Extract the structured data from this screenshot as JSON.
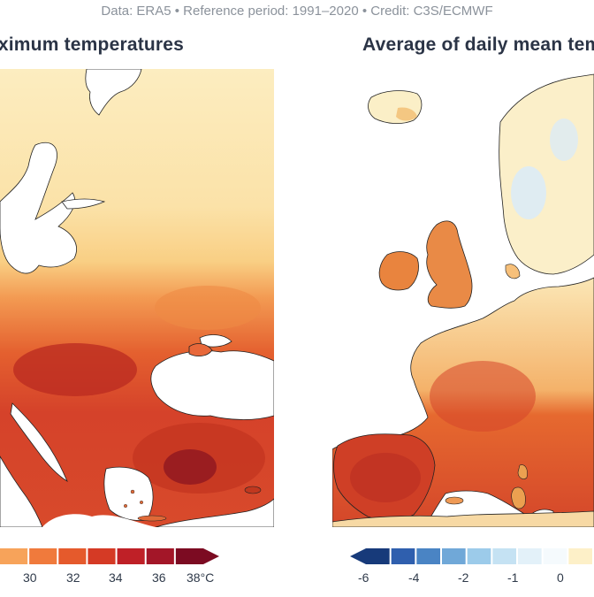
{
  "header": {
    "credit": "Data: ERA5 • Reference period: 1991–2020 • Credit: C3S/ECMWF"
  },
  "left_panel": {
    "title": "aximum temperatures",
    "legend_ticks": [
      "30",
      "32",
      "34",
      "36",
      "38°C"
    ],
    "legend_colors": [
      "#f7a35a",
      "#f07a3c",
      "#e55a2c",
      "#d53a25",
      "#bf2027",
      "#a31628",
      "#7c0b22"
    ]
  },
  "right_panel": {
    "title": "Average of daily mean tem",
    "legend_ticks": [
      "-6",
      "-4",
      "-2",
      "-1",
      "0"
    ],
    "legend_colors": [
      "#173a7a",
      "#2f5fae",
      "#4a84c4",
      "#70a8d8",
      "#9ccbea",
      "#c5e2f3",
      "#e3f1f9",
      "#f5fafd",
      "#fdf0c8"
    ]
  },
  "colors": {
    "hot_dark": "#a51a1a",
    "hot": "#d8462a",
    "warm": "#ee8a3c",
    "mild": "#f7c373",
    "pale": "#fbe8b4",
    "cool": "#d6e8f5",
    "sea": "#ffffff"
  }
}
